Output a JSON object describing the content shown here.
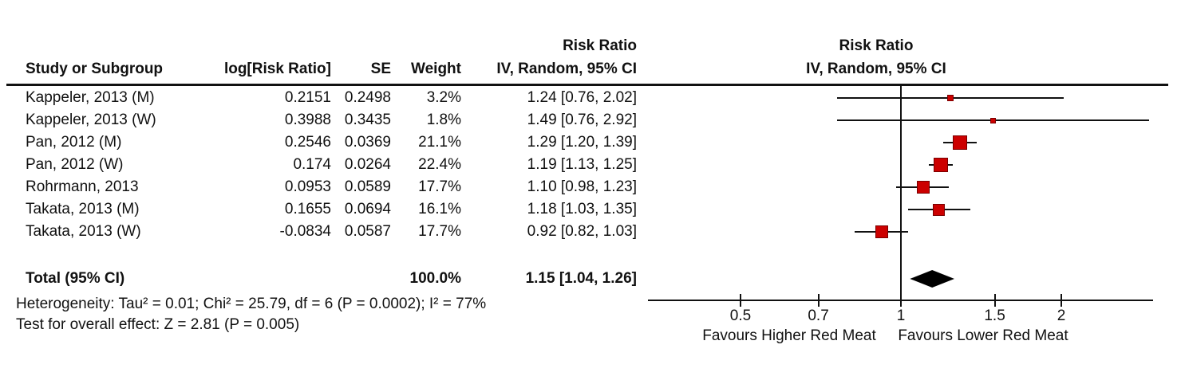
{
  "table": {
    "headers": {
      "study": "Study or Subgroup",
      "log_rr": "log[Risk Ratio]",
      "se": "SE",
      "weight": "Weight",
      "effect_line1": "Risk Ratio",
      "effect_line2": "IV, Random, 95% CI"
    },
    "plot_header": {
      "line1": "Risk Ratio",
      "line2": "IV, Random, 95% CI"
    },
    "rows": [
      {
        "study": "Kappeler, 2013 (M)",
        "log_rr": "0.2151",
        "se": "0.2498",
        "weight": "3.2%",
        "rr_ci": "1.24 [0.76, 2.02]"
      },
      {
        "study": "Kappeler, 2013 (W)",
        "log_rr": "0.3988",
        "se": "0.3435",
        "weight": "1.8%",
        "rr_ci": "1.49 [0.76, 2.92]"
      },
      {
        "study": "Pan, 2012 (M)",
        "log_rr": "0.2546",
        "se": "0.0369",
        "weight": "21.1%",
        "rr_ci": "1.29 [1.20, 1.39]"
      },
      {
        "study": "Pan, 2012 (W)",
        "log_rr": "0.174",
        "se": "0.0264",
        "weight": "22.4%",
        "rr_ci": "1.19 [1.13, 1.25]"
      },
      {
        "study": "Rohrmann, 2013",
        "log_rr": "0.0953",
        "se": "0.0589",
        "weight": "17.7%",
        "rr_ci": "1.10 [0.98, 1.23]"
      },
      {
        "study": "Takata, 2013 (M)",
        "log_rr": "0.1655",
        "se": "0.0694",
        "weight": "16.1%",
        "rr_ci": "1.18 [1.03, 1.35]"
      },
      {
        "study": "Takata, 2013 (W)",
        "log_rr": "-0.0834",
        "se": "0.0587",
        "weight": "17.7%",
        "rr_ci": "0.92 [0.82, 1.03]"
      }
    ],
    "total": {
      "label": "Total (95% CI)",
      "weight": "100.0%",
      "rr_ci": "1.15 [1.04, 1.26]"
    },
    "heterogeneity": "Heterogeneity: Tau² = 0.01; Chi² = 25.79, df = 6 (P = 0.0002); I² = 77%",
    "overall_effect": "Test for overall effect: Z = 2.81 (P = 0.005)"
  },
  "chart_data": {
    "type": "forest",
    "effect_measure": "Risk Ratio",
    "model": "IV, Random, 95% CI",
    "x_scale": "log",
    "axis_ticks": [
      0.5,
      0.7,
      1,
      1.5,
      2
    ],
    "null_line": 1,
    "studies": [
      {
        "name": "Kappeler, 2013 (M)",
        "rr": 1.24,
        "ci_low": 0.76,
        "ci_high": 2.02,
        "weight_pct": 3.2
      },
      {
        "name": "Kappeler, 2013 (W)",
        "rr": 1.49,
        "ci_low": 0.76,
        "ci_high": 2.92,
        "weight_pct": 1.8
      },
      {
        "name": "Pan, 2012 (M)",
        "rr": 1.29,
        "ci_low": 1.2,
        "ci_high": 1.39,
        "weight_pct": 21.1
      },
      {
        "name": "Pan, 2012 (W)",
        "rr": 1.19,
        "ci_low": 1.13,
        "ci_high": 1.25,
        "weight_pct": 22.4
      },
      {
        "name": "Rohrmann, 2013",
        "rr": 1.1,
        "ci_low": 0.98,
        "ci_high": 1.23,
        "weight_pct": 17.7
      },
      {
        "name": "Takata, 2013 (M)",
        "rr": 1.18,
        "ci_low": 1.03,
        "ci_high": 1.35,
        "weight_pct": 16.1
      },
      {
        "name": "Takata, 2013 (W)",
        "rr": 0.92,
        "ci_low": 0.82,
        "ci_high": 1.03,
        "weight_pct": 17.7
      }
    ],
    "total": {
      "rr": 1.15,
      "ci_low": 1.04,
      "ci_high": 1.26,
      "weight_pct": 100.0
    },
    "favours_left": "Favours Higher Red Meat",
    "favours_right": "Favours Lower Red Meat",
    "marker_color": "#CC0000",
    "marker_border_color": "#7A0000",
    "diamond_color": "#000000",
    "line_color": "#111111"
  }
}
